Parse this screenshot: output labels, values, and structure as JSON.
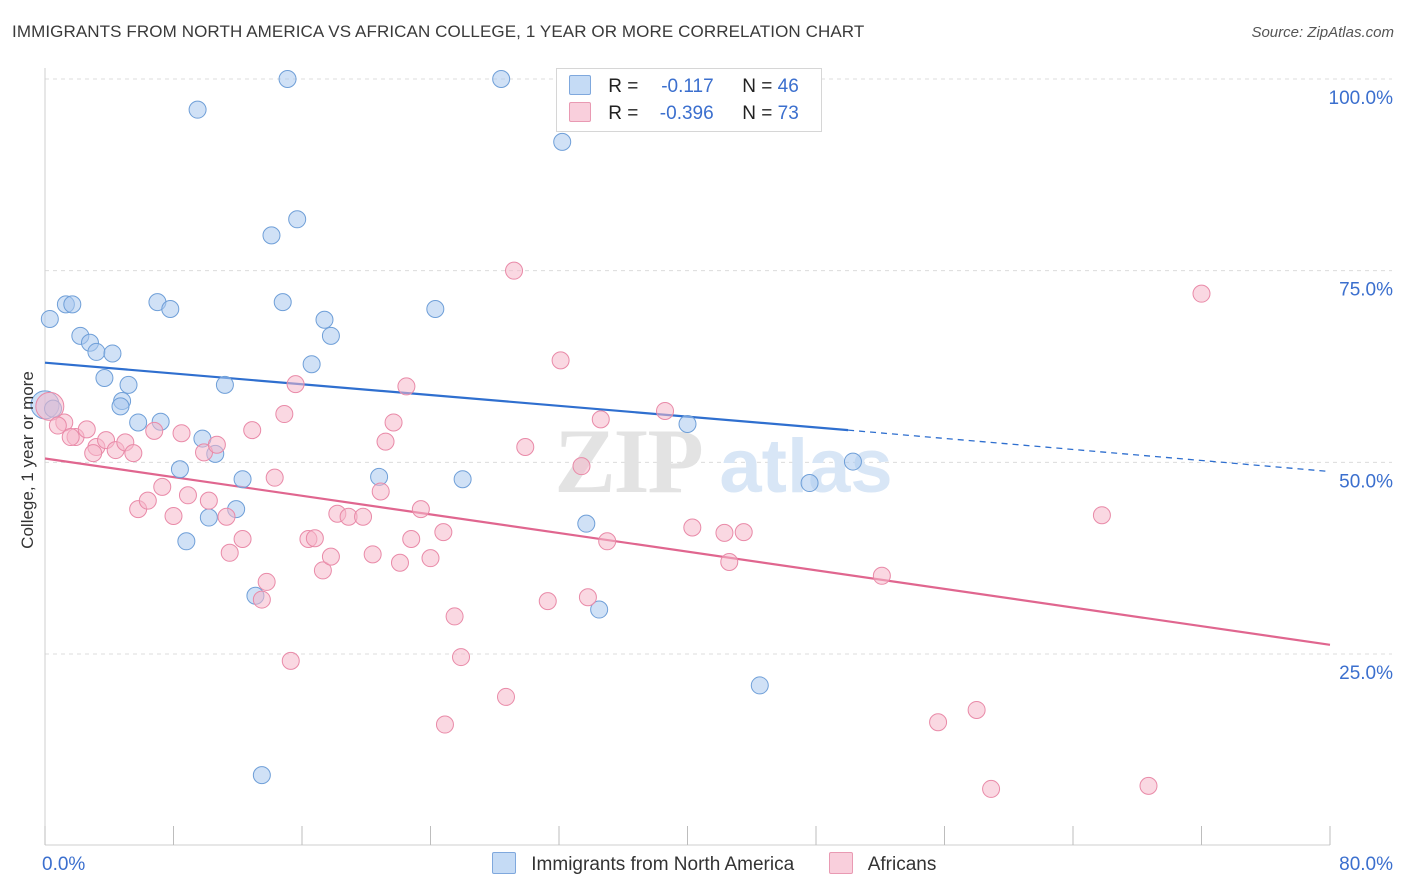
{
  "header": {
    "title": "IMMIGRANTS FROM NORTH AMERICA VS AFRICAN COLLEGE, 1 YEAR OR MORE CORRELATION CHART",
    "source": "Source: ZipAtlas.com"
  },
  "watermark": {
    "zip": "ZIP",
    "atlas": "atlas"
  },
  "stats": {
    "series1": {
      "r_label": "R =",
      "r_value": "-0.117",
      "n_label": "N =",
      "n_value": "46",
      "color": "#a9c8ef"
    },
    "series2": {
      "r_label": "R =",
      "r_value": "-0.396",
      "n_label": "N =",
      "n_value": "73",
      "color": "#f5b8cb"
    }
  },
  "legend": {
    "series1": "Immigrants from North America",
    "series2": "Africans"
  },
  "chart_data": {
    "type": "scatter",
    "title": "IMMIGRANTS FROM NORTH AMERICA VS AFRICAN COLLEGE, 1 YEAR OR MORE CORRELATION CHART",
    "xlabel": "",
    "ylabel": "College, 1 year or more",
    "xlim": [
      0,
      80
    ],
    "ylim": [
      0,
      103
    ],
    "x_tick_labels": [
      "0.0%",
      "80.0%"
    ],
    "y_tick_labels": [
      "25.0%",
      "50.0%",
      "75.0%",
      "100.0%"
    ],
    "y_ticks": [
      25,
      50,
      75,
      100
    ],
    "grid": "horizontal dashed",
    "legend_position": "bottom-center",
    "series": [
      {
        "name": "Immigrants from North America",
        "color": "#a9c8ef",
        "edge": "#6f9fd8",
        "line_color": "#2f6fcf",
        "trend": {
          "x_start": 0,
          "y_start": 63.0,
          "x_end": 50,
          "y_end": 54.2,
          "dashed_to_x": 80,
          "dashed_to_y": 48.8
        },
        "points": [
          [
            0.3,
            68.7
          ],
          [
            1.3,
            70.6
          ],
          [
            1.7,
            70.6
          ],
          [
            2.2,
            66.5
          ],
          [
            2.8,
            65.6
          ],
          [
            3.2,
            64.4
          ],
          [
            4.2,
            64.2
          ],
          [
            3.7,
            61.0
          ],
          [
            5.2,
            60.1
          ],
          [
            4.8,
            58.0
          ],
          [
            4.7,
            57.3
          ],
          [
            5.8,
            55.2
          ],
          [
            7.2,
            55.3
          ],
          [
            7.0,
            70.9
          ],
          [
            7.8,
            70.0
          ],
          [
            9.5,
            96.0
          ],
          [
            15.1,
            100.0
          ],
          [
            28.4,
            100.0
          ],
          [
            32.2,
            91.8
          ],
          [
            14.1,
            79.6
          ],
          [
            15.7,
            81.7
          ],
          [
            14.8,
            70.9
          ],
          [
            17.4,
            68.6
          ],
          [
            17.8,
            66.5
          ],
          [
            16.6,
            62.8
          ],
          [
            24.3,
            70.0
          ],
          [
            11.2,
            60.1
          ],
          [
            9.8,
            53.1
          ],
          [
            10.6,
            51.1
          ],
          [
            8.4,
            49.1
          ],
          [
            12.3,
            47.8
          ],
          [
            10.2,
            42.8
          ],
          [
            8.8,
            39.7
          ],
          [
            11.9,
            43.9
          ],
          [
            13.1,
            32.6
          ],
          [
            13.5,
            9.2
          ],
          [
            20.8,
            48.1
          ],
          [
            26.0,
            47.8
          ],
          [
            33.7,
            42.0
          ],
          [
            34.5,
            30.8
          ],
          [
            44.5,
            20.9
          ],
          [
            40.0,
            55.0
          ],
          [
            50.3,
            50.1
          ],
          [
            47.6,
            47.3
          ],
          [
            0.0,
            57.5
          ],
          [
            0.5,
            57.0
          ]
        ]
      },
      {
        "name": "Africans",
        "color": "#f5b8cb",
        "edge": "#e98aa8",
        "line_color": "#e0668f",
        "trend": {
          "x_start": 0,
          "y_start": 50.5,
          "x_end": 80,
          "y_end": 26.2
        },
        "points": [
          [
            0.3,
            57.3
          ],
          [
            1.2,
            55.2
          ],
          [
            1.9,
            53.3
          ],
          [
            2.6,
            54.3
          ],
          [
            3.2,
            52.0
          ],
          [
            3.8,
            52.9
          ],
          [
            4.4,
            51.6
          ],
          [
            5.0,
            52.6
          ],
          [
            5.5,
            51.2
          ],
          [
            6.8,
            54.1
          ],
          [
            5.8,
            43.9
          ],
          [
            6.4,
            45.0
          ],
          [
            7.3,
            46.8
          ],
          [
            8.0,
            43.0
          ],
          [
            8.5,
            53.8
          ],
          [
            8.9,
            45.7
          ],
          [
            9.9,
            51.3
          ],
          [
            10.2,
            45.0
          ],
          [
            10.7,
            52.3
          ],
          [
            11.3,
            42.9
          ],
          [
            11.5,
            38.2
          ],
          [
            12.3,
            40.0
          ],
          [
            12.9,
            54.2
          ],
          [
            13.5,
            32.1
          ],
          [
            13.8,
            34.4
          ],
          [
            14.3,
            48.0
          ],
          [
            14.9,
            56.3
          ],
          [
            15.3,
            24.1
          ],
          [
            15.6,
            60.2
          ],
          [
            16.4,
            40.0
          ],
          [
            16.8,
            40.1
          ],
          [
            17.3,
            35.9
          ],
          [
            17.8,
            37.7
          ],
          [
            18.2,
            43.3
          ],
          [
            18.9,
            42.9
          ],
          [
            19.8,
            42.9
          ],
          [
            20.4,
            38.0
          ],
          [
            20.9,
            46.2
          ],
          [
            21.2,
            52.7
          ],
          [
            21.7,
            55.2
          ],
          [
            22.1,
            36.9
          ],
          [
            22.5,
            59.9
          ],
          [
            22.8,
            40.0
          ],
          [
            23.4,
            43.9
          ],
          [
            24.0,
            37.5
          ],
          [
            24.8,
            40.9
          ],
          [
            25.5,
            29.9
          ],
          [
            25.9,
            24.6
          ],
          [
            24.9,
            15.8
          ],
          [
            29.2,
            75.0
          ],
          [
            29.9,
            52.0
          ],
          [
            31.3,
            31.9
          ],
          [
            32.1,
            63.3
          ],
          [
            33.4,
            49.5
          ],
          [
            33.8,
            32.4
          ],
          [
            34.6,
            55.6
          ],
          [
            35.0,
            39.7
          ],
          [
            38.6,
            56.7
          ],
          [
            28.7,
            19.4
          ],
          [
            40.3,
            41.5
          ],
          [
            42.3,
            40.8
          ],
          [
            42.6,
            37.0
          ],
          [
            43.5,
            40.9
          ],
          [
            52.1,
            35.2
          ],
          [
            55.6,
            16.1
          ],
          [
            58.0,
            17.7
          ],
          [
            58.9,
            7.4
          ],
          [
            65.8,
            43.1
          ],
          [
            68.7,
            7.8
          ],
          [
            72.0,
            72.0
          ],
          [
            3.0,
            51.2
          ],
          [
            0.8,
            54.8
          ],
          [
            1.6,
            53.3
          ]
        ]
      }
    ]
  }
}
